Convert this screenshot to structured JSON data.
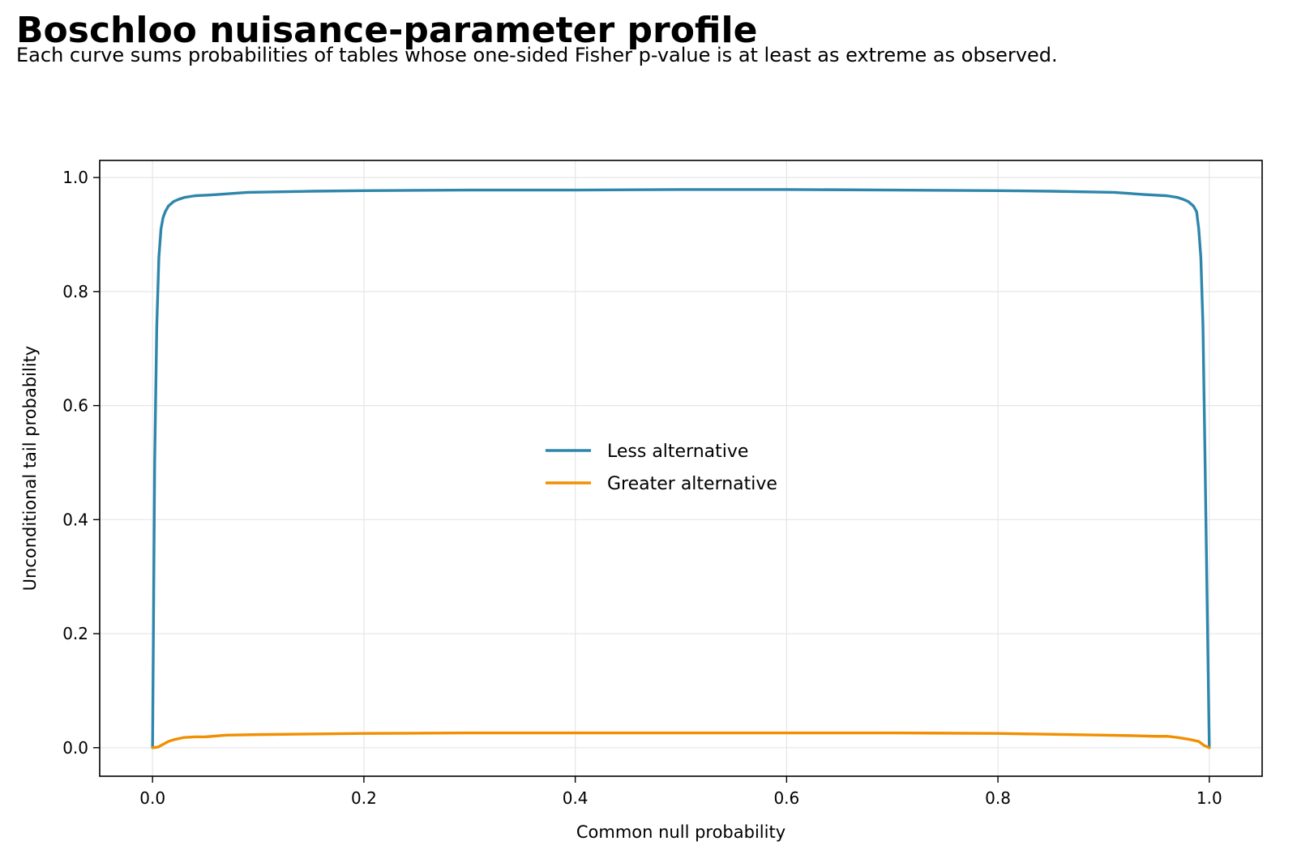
{
  "header": {
    "title": "Boschloo nuisance-parameter profile",
    "subtitle": "Each curve sums probabilities of tables whose one-sided Fisher p-value is at least as extreme as observed."
  },
  "chart_data": {
    "type": "line",
    "title": "Boschloo nuisance-parameter profile",
    "subtitle": "Each curve sums probabilities of tables whose one-sided Fisher p-value is at least as extreme as observed.",
    "xlabel": "Common null probability",
    "ylabel": "Unconditional tail probability",
    "xlim": [
      -0.05,
      1.05
    ],
    "ylim": [
      -0.05,
      1.03
    ],
    "xticks": [
      0.0,
      0.2,
      0.4,
      0.6,
      0.8,
      1.0
    ],
    "xtick_labels": [
      "0.0",
      "0.2",
      "0.4",
      "0.6",
      "0.8",
      "1.0"
    ],
    "yticks": [
      0.0,
      0.2,
      0.4,
      0.6,
      0.8,
      1.0
    ],
    "ytick_labels": [
      "0.0",
      "0.2",
      "0.4",
      "0.6",
      "0.8",
      "1.0"
    ],
    "grid": true,
    "legend_position": "center",
    "series": [
      {
        "name": "Less alternative",
        "color": "#2e86ab",
        "x": [
          0.0,
          0.002,
          0.004,
          0.006,
          0.008,
          0.01,
          0.012,
          0.015,
          0.02,
          0.025,
          0.03,
          0.04,
          0.06,
          0.09,
          0.15,
          0.2,
          0.3,
          0.4,
          0.5,
          0.6,
          0.7,
          0.8,
          0.85,
          0.91,
          0.94,
          0.96,
          0.97,
          0.975,
          0.98,
          0.985,
          0.988,
          0.99,
          0.992,
          0.994,
          0.996,
          0.998,
          1.0
        ],
        "y": [
          0.0,
          0.5,
          0.74,
          0.86,
          0.91,
          0.93,
          0.94,
          0.95,
          0.958,
          0.962,
          0.965,
          0.968,
          0.97,
          0.974,
          0.976,
          0.977,
          0.978,
          0.978,
          0.979,
          0.979,
          0.978,
          0.977,
          0.976,
          0.974,
          0.97,
          0.968,
          0.965,
          0.962,
          0.958,
          0.95,
          0.94,
          0.91,
          0.86,
          0.74,
          0.5,
          0.25,
          0.0
        ]
      },
      {
        "name": "Greater alternative",
        "color": "#f18f01",
        "x": [
          0.0,
          0.005,
          0.01,
          0.015,
          0.02,
          0.03,
          0.04,
          0.05,
          0.07,
          0.1,
          0.2,
          0.3,
          0.4,
          0.5,
          0.6,
          0.7,
          0.8,
          0.9,
          0.93,
          0.95,
          0.96,
          0.97,
          0.98,
          0.99,
          0.995,
          1.0
        ],
        "y": [
          0.0,
          0.001,
          0.006,
          0.011,
          0.014,
          0.018,
          0.019,
          0.019,
          0.022,
          0.023,
          0.025,
          0.026,
          0.026,
          0.026,
          0.026,
          0.026,
          0.025,
          0.022,
          0.021,
          0.02,
          0.02,
          0.018,
          0.015,
          0.011,
          0.004,
          0.0
        ]
      }
    ]
  }
}
